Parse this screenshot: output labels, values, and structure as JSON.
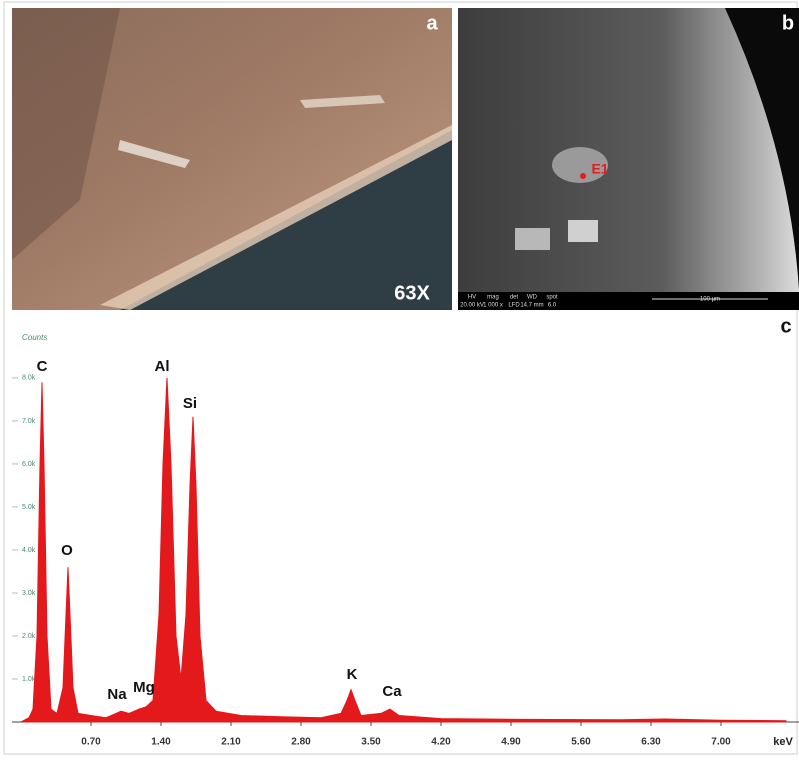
{
  "images": {
    "a": {
      "panel_label": "a",
      "magnification": "63X"
    },
    "b": {
      "panel_label": "b",
      "point_label": "E1",
      "databar": {
        "headers": [
          "HV",
          "mag",
          "det",
          "WD",
          "spot"
        ],
        "values": [
          "20.00 kV",
          "1 000 x",
          "LFD",
          "14.7 mm",
          "6.0"
        ],
        "scale": "100 µm"
      }
    }
  },
  "chart_data": {
    "type": "area",
    "panel_label": "c",
    "y_label": "Counts",
    "x_unit": "keV",
    "color": "#e3191c",
    "x": [
      0.0,
      0.08,
      0.12,
      0.16,
      0.19,
      0.21,
      0.23,
      0.26,
      0.3,
      0.36,
      0.42,
      0.45,
      0.47,
      0.49,
      0.52,
      0.57,
      0.7,
      0.85,
      0.95,
      1.0,
      1.08,
      1.18,
      1.25,
      1.32,
      1.38,
      1.42,
      1.46,
      1.5,
      1.55,
      1.6,
      1.65,
      1.69,
      1.72,
      1.75,
      1.79,
      1.85,
      1.95,
      2.2,
      2.6,
      3.0,
      3.2,
      3.26,
      3.3,
      3.34,
      3.4,
      3.6,
      3.69,
      3.78,
      4.2,
      5.0,
      6.0,
      6.44,
      7.0,
      7.65
    ],
    "values": [
      0,
      100,
      300,
      2000,
      6000,
      7900,
      6000,
      2000,
      300,
      200,
      800,
      2500,
      3600,
      2500,
      800,
      200,
      150,
      100,
      200,
      250,
      200,
      300,
      350,
      500,
      2500,
      6000,
      8000,
      6000,
      2000,
      1000,
      2500,
      5500,
      7100,
      5500,
      2000,
      500,
      250,
      150,
      120,
      100,
      200,
      500,
      750,
      500,
      150,
      200,
      300,
      150,
      80,
      60,
      50,
      70,
      40,
      30
    ],
    "annotations": [
      "C",
      "O",
      "Na",
      "Mg",
      "Al",
      "Si",
      "K",
      "Ca"
    ],
    "xlim": [
      0,
      7.7
    ],
    "ylim": [
      0,
      8300
    ],
    "xticks": [
      {
        "value": 0.7,
        "label": "0.70"
      },
      {
        "value": 1.4,
        "label": "1.40"
      },
      {
        "value": 2.1,
        "label": "2.10"
      },
      {
        "value": 2.8,
        "label": "2.80"
      },
      {
        "value": 3.5,
        "label": "3.50"
      },
      {
        "value": 4.2,
        "label": "4.20"
      },
      {
        "value": 4.9,
        "label": "4.90"
      },
      {
        "value": 5.6,
        "label": "5.60"
      },
      {
        "value": 6.3,
        "label": "6.30"
      },
      {
        "value": 7.0,
        "label": "7.00"
      }
    ],
    "yticks": [
      {
        "value": 1000,
        "label": "1.0k"
      },
      {
        "value": 2000,
        "label": "2.0k"
      },
      {
        "value": 3000,
        "label": "3.0k"
      },
      {
        "value": 4000,
        "label": "4.0k"
      },
      {
        "value": 5000,
        "label": "5.0k"
      },
      {
        "value": 6000,
        "label": "6.0k"
      },
      {
        "value": 7000,
        "label": "7.0k"
      },
      {
        "value": 8000,
        "label": "8.0k"
      }
    ]
  }
}
